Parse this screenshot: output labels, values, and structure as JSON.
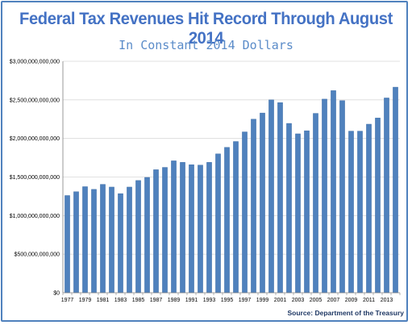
{
  "page": {
    "title": "Federal Tax Revenues Hit Record Through August 2014",
    "subtitle": "In Constant 2014 Dollars",
    "source": "Source: Department of the Treasury"
  },
  "colors": {
    "title": "#4472c4",
    "subtitle": "#5b8cc9",
    "bar": "#4f81bd",
    "bar_edge": "#3a6aa3",
    "grid": "#d9d9d9",
    "frame": "#4f81bd",
    "source": "#1f3864"
  },
  "chart_data": {
    "type": "bar",
    "title": "Federal Tax Revenues Hit Record Through August 2014",
    "subtitle": "In Constant 2014 Dollars",
    "xlabel": "",
    "ylabel": "",
    "ylim": [
      0,
      3000000000000
    ],
    "yticks": [
      0,
      500000000000,
      1000000000000,
      1500000000000,
      2000000000000,
      2500000000000,
      3000000000000
    ],
    "ytick_labels": [
      "$0",
      "$500,000,000,000",
      "$1,000,000,000,000",
      "$1,500,000,000,000",
      "$2,000,000,000,000",
      "$2,500,000,000,000",
      "$3,000,000,000,000"
    ],
    "grid": true,
    "legend": "none",
    "categories": [
      "1977",
      "1978",
      "1979",
      "1980",
      "1981",
      "1982",
      "1983",
      "1984",
      "1985",
      "1986",
      "1987",
      "1988",
      "1989",
      "1990",
      "1991",
      "1992",
      "1993",
      "1994",
      "1995",
      "1996",
      "1997",
      "1998",
      "1999",
      "2000",
      "2001",
      "2002",
      "2003",
      "2004",
      "2005",
      "2006",
      "2007",
      "2008",
      "2009",
      "2010",
      "2011",
      "2012",
      "2013",
      "2014"
    ],
    "xtick_labels": [
      "1977",
      "",
      "1979",
      "",
      "1981",
      "",
      "1983",
      "",
      "1985",
      "",
      "1987",
      "",
      "1989",
      "",
      "1991",
      "",
      "1993",
      "",
      "1995",
      "",
      "1997",
      "",
      "1999",
      "",
      "2001",
      "",
      "2003",
      "",
      "2005",
      "",
      "2007",
      "",
      "2009",
      "",
      "2011",
      "",
      "2013",
      ""
    ],
    "values": [
      1260000000000,
      1310000000000,
      1375000000000,
      1340000000000,
      1405000000000,
      1370000000000,
      1285000000000,
      1370000000000,
      1455000000000,
      1495000000000,
      1595000000000,
      1625000000000,
      1710000000000,
      1690000000000,
      1660000000000,
      1655000000000,
      1690000000000,
      1800000000000,
      1885000000000,
      1960000000000,
      2085000000000,
      2250000000000,
      2330000000000,
      2500000000000,
      2465000000000,
      2195000000000,
      2060000000000,
      2100000000000,
      2325000000000,
      2510000000000,
      2620000000000,
      2490000000000,
      2095000000000,
      2095000000000,
      2185000000000,
      2265000000000,
      2525000000000,
      2665000000000
    ]
  }
}
